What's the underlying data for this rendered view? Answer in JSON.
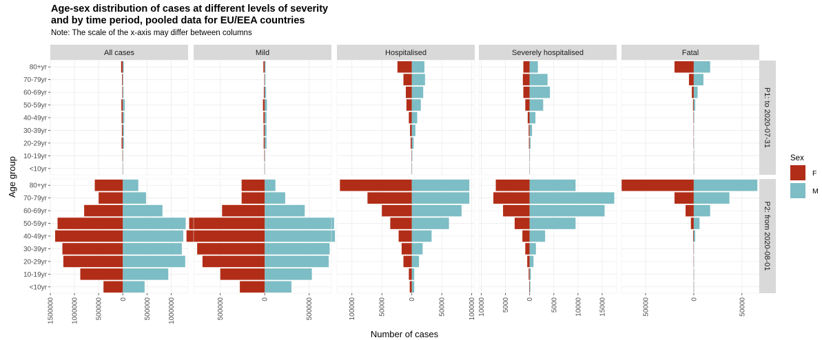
{
  "title": "Age-sex distribution of cases at different levels of severity\nand by time period, pooled data for EU/EEA countries",
  "subtitle": "Note: The scale of the x-axis may differ between columns",
  "chart_data": {
    "type": "bar",
    "orientation": "horizontal",
    "layout": "population-pyramid facet grid",
    "xlabel": "Number of cases",
    "ylabel": "Age group",
    "age_groups": [
      "80+yr",
      "70-79yr",
      "60-69yr",
      "50-59yr",
      "40-49yr",
      "30-39yr",
      "20-29yr",
      "10-19yr",
      "<10yr"
    ],
    "legend": {
      "title": "Sex",
      "position": "right",
      "items": [
        {
          "label": "F",
          "color": "#B22D17"
        },
        {
          "label": "M",
          "color": "#7DBDC5"
        }
      ]
    },
    "columns": [
      {
        "label": "All cases",
        "xlim": [
          -1500000,
          1350000
        ],
        "ticks": [
          -1500000,
          -1000000,
          -500000,
          0,
          500000,
          1000000
        ],
        "tick_labels": [
          "1500000",
          "1000000",
          "500000",
          "0",
          "500000",
          "1000000"
        ]
      },
      {
        "label": "Mild",
        "xlim": [
          -800000,
          750000
        ],
        "ticks": [
          -500000,
          0,
          500000
        ],
        "tick_labels": [
          "500000",
          "0",
          "500000"
        ]
      },
      {
        "label": "Hospitalised",
        "xlim": [
          -125000,
          105000
        ],
        "ticks": [
          -100000,
          -50000,
          0,
          50000,
          100000
        ],
        "tick_labels": [
          "100000",
          "50000",
          "0",
          "50000",
          "100000"
        ]
      },
      {
        "label": "Severely hospitalised",
        "xlim": [
          -10500,
          18000
        ],
        "ticks": [
          -10000,
          -5000,
          0,
          5000,
          10000,
          15000
        ],
        "tick_labels": [
          "10000",
          "5000",
          "0",
          "5000",
          "10000",
          "15000"
        ]
      },
      {
        "label": "Fatal",
        "xlim": [
          -75000,
          68000
        ],
        "ticks": [
          -50000,
          0,
          50000
        ],
        "tick_labels": [
          "50000",
          "0",
          "50000"
        ]
      }
    ],
    "rows": [
      {
        "label": "P1: to 2020-07-31",
        "values": [
          {
            "F": [
              35000,
              15000,
              12000,
              30000,
              25000,
              20000,
              25000,
              8000,
              5000
            ],
            "M": [
              20000,
              10000,
              15000,
              40000,
              30000,
              25000,
              25000,
              8000,
              5000
            ]
          },
          {
            "F": [
              15000,
              5000,
              10000,
              20000,
              15000,
              12000,
              12000,
              5000,
              3000
            ],
            "M": [
              10000,
              8000,
              15000,
              25000,
              20000,
              20000,
              20000,
              5000,
              3000
            ]
          },
          {
            "F": [
              24000,
              14000,
              10000,
              9000,
              5000,
              3000,
              2000,
              600,
              400
            ],
            "M": [
              21000,
              22000,
              19000,
              15000,
              9000,
              6000,
              3000,
              800,
              500
            ]
          },
          {
            "F": [
              1300,
              1400,
              1300,
              900,
              400,
              200,
              150,
              50,
              30
            ],
            "M": [
              1700,
              3700,
              4200,
              2800,
              1200,
              500,
              200,
              60,
              30
            ]
          },
          {
            "F": [
              20000,
              5000,
              2000,
              800,
              400,
              200,
              200,
              50,
              30
            ],
            "M": [
              17000,
              10000,
              4000,
              1500,
              500,
              200,
              100,
              50,
              30
            ]
          }
        ]
      },
      {
        "label": "P2: from 2020-08-01",
        "values": [
          {
            "F": [
              580000,
              500000,
              800000,
              1350000,
              1400000,
              1250000,
              1230000,
              880000,
              400000
            ],
            "M": [
              320000,
              480000,
              820000,
              1300000,
              1250000,
              1220000,
              1290000,
              940000,
              450000
            ]
          },
          {
            "F": [
              260000,
              260000,
              480000,
              850000,
              880000,
              760000,
              700000,
              500000,
              280000
            ],
            "M": [
              120000,
              230000,
              450000,
              780000,
              790000,
              730000,
              720000,
              530000,
              300000
            ]
          },
          {
            "F": [
              120000,
              74000,
              50000,
              36000,
              22000,
              17000,
              14000,
              5000,
              3500
            ],
            "M": [
              96000,
              96000,
              83000,
              62000,
              33000,
              18000,
              12000,
              4000,
              4000
            ]
          },
          {
            "F": [
              7000,
              7500,
              5500,
              3100,
              1500,
              900,
              500,
              200,
              100
            ],
            "M": [
              9500,
              17500,
              15500,
              9500,
              3200,
              1300,
              800,
              250,
              150
            ]
          },
          {
            "F": [
              75000,
              20000,
              8500,
              3000,
              700,
              300,
              200,
              100,
              100
            ],
            "M": [
              66000,
              37000,
              17000,
              6000,
              1500,
              300,
              200,
              100,
              100
            ]
          }
        ]
      }
    ]
  }
}
